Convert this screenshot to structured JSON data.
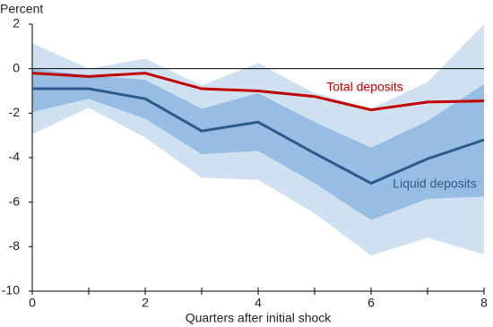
{
  "chart_data": {
    "type": "line",
    "ylabel": "Percent",
    "xlabel": "Quarters after initial shock",
    "x": [
      0,
      1,
      2,
      3,
      4,
      5,
      6,
      7,
      8
    ],
    "xlim": [
      0,
      8
    ],
    "xticks": [
      0,
      2,
      4,
      6,
      8
    ],
    "xminorticks": [
      1,
      3,
      5,
      7
    ],
    "ylim": [
      -10,
      2
    ],
    "yticks": [
      -10,
      -8,
      -6,
      -4,
      -2,
      0,
      2
    ],
    "zero_line": true,
    "series": [
      {
        "name": "Liquid deposits",
        "color": "#2b5b8c",
        "values": [
          -0.9,
          -0.9,
          -1.35,
          -2.8,
          -2.4,
          -3.8,
          -5.15,
          -4.05,
          -3.2
        ],
        "bands": [
          {
            "color": "#cfe0f1",
            "lower": [
              -2.95,
              -1.75,
              -3.1,
              -4.9,
              -5.0,
              -6.5,
              -8.4,
              -7.6,
              -8.35
            ],
            "upper": [
              1.15,
              0.0,
              0.45,
              -0.75,
              0.25,
              -1.1,
              -1.8,
              -0.6,
              2.0
            ]
          },
          {
            "color": "#98bde2",
            "lower": [
              -1.95,
              -1.35,
              -2.25,
              -3.85,
              -3.7,
              -5.15,
              -6.8,
              -5.85,
              -5.75
            ],
            "upper": [
              0.0,
              -0.3,
              -0.5,
              -1.8,
              -1.1,
              -2.4,
              -3.55,
              -2.35,
              -0.7
            ]
          }
        ]
      },
      {
        "name": "Total deposits",
        "color": "#c00000",
        "values": [
          -0.2,
          -0.35,
          -0.2,
          -0.9,
          -1.0,
          -1.25,
          -1.85,
          -1.5,
          -1.45
        ]
      }
    ]
  }
}
